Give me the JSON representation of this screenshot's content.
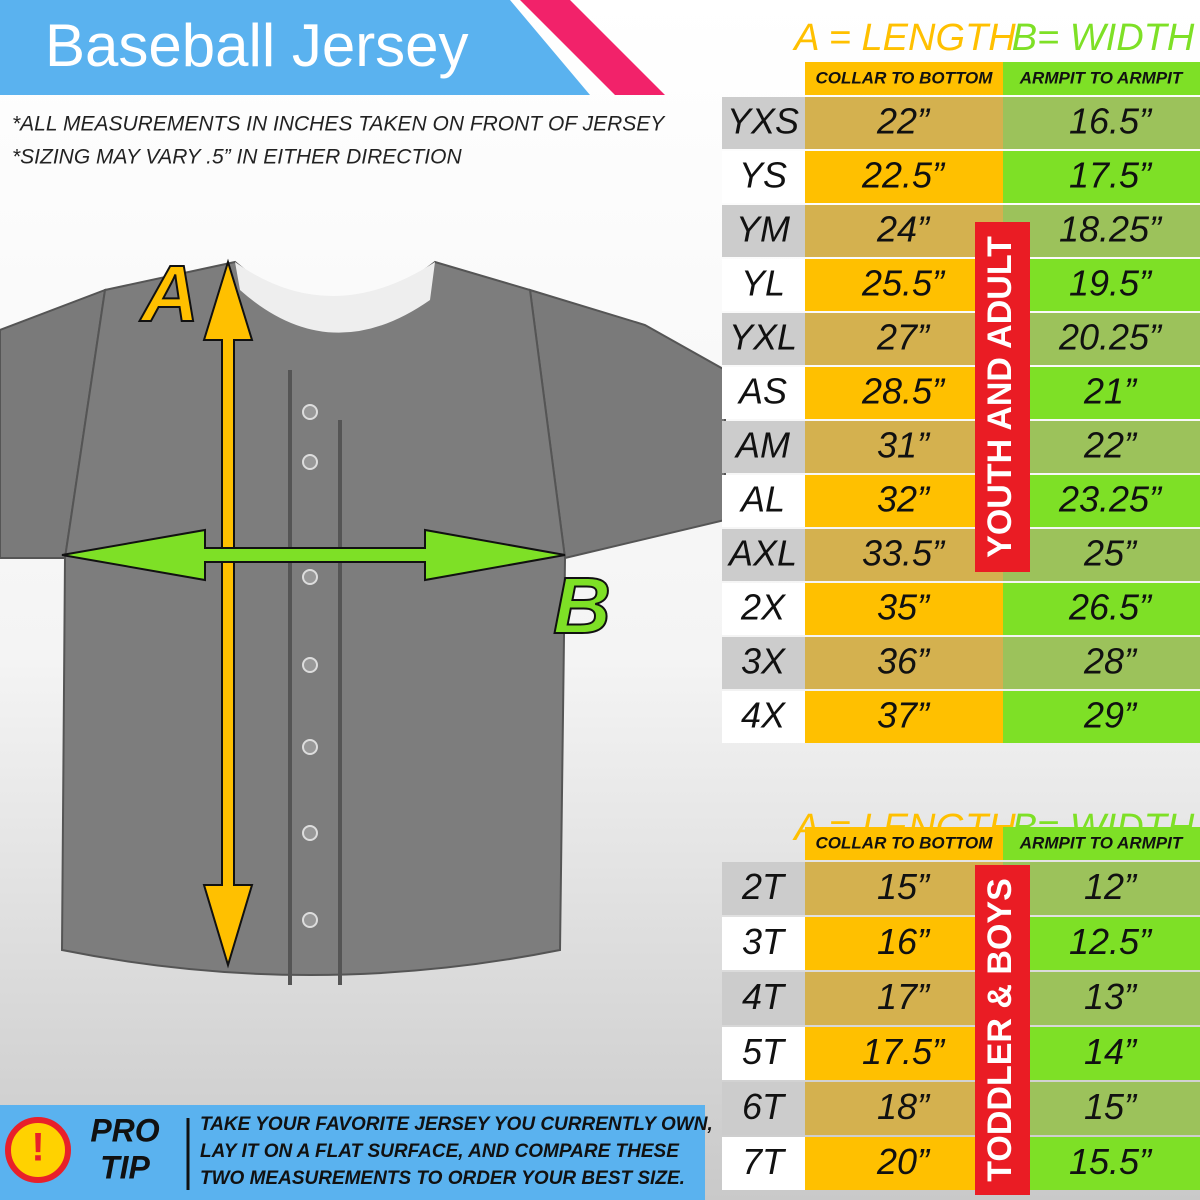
{
  "header": {
    "title": "Baseball Jersey",
    "notes": [
      "*ALL MEASUREMENTS IN INCHES TAKEN ON FRONT OF JERSEY",
      "*SIZING MAY VARY .5” IN EITHER DIRECTION"
    ]
  },
  "diagram": {
    "length_label": "A",
    "width_label": "B"
  },
  "tables": [
    {
      "group_label": "YOUTH AND ADULT",
      "length_heading": "A = LENGTH",
      "length_sub": "COLLAR TO BOTTOM",
      "width_heading": "B= WIDTH",
      "width_sub": "ARMPIT TO ARMPIT",
      "rows": [
        [
          "YXS",
          "22”",
          "16.5”"
        ],
        [
          "YS",
          "22.5”",
          "17.5”"
        ],
        [
          "YM",
          "24”",
          "18.25”"
        ],
        [
          "YL",
          "25.5”",
          "19.5”"
        ],
        [
          "YXL",
          "27”",
          "20.25”"
        ],
        [
          "AS",
          "28.5”",
          "21”"
        ],
        [
          "AM",
          "31”",
          "22”"
        ],
        [
          "AL",
          "32”",
          "23.25”"
        ],
        [
          "AXL",
          "33.5”",
          "25”"
        ],
        [
          "2X",
          "35”",
          "26.5”"
        ],
        [
          "3X",
          "36”",
          "28”"
        ],
        [
          "4X",
          "37”",
          "29”"
        ]
      ]
    },
    {
      "group_label": "TODDLER & BOYS",
      "length_heading": "A = LENGTH",
      "length_sub": "COLLAR TO BOTTOM",
      "width_heading": "B= WIDTH",
      "width_sub": "ARMPIT TO ARMPIT",
      "rows": [
        [
          "2T",
          "15”",
          "12”"
        ],
        [
          "3T",
          "16”",
          "12.5”"
        ],
        [
          "4T",
          "17”",
          "13”"
        ],
        [
          "5T",
          "17.5”",
          "14”"
        ],
        [
          "6T",
          "18”",
          "15”"
        ],
        [
          "7T",
          "20”",
          "15.5”"
        ]
      ]
    }
  ],
  "pro_tip": {
    "badge": [
      "PRO",
      "TIP"
    ],
    "text": [
      "TAKE YOUR FAVORITE JERSEY YOU CURRENTLY OWN,",
      "LAY IT ON A FLAT SURFACE, AND COMPARE THESE",
      "TWO MEASUREMENTS TO ORDER YOUR BEST SIZE."
    ]
  }
}
